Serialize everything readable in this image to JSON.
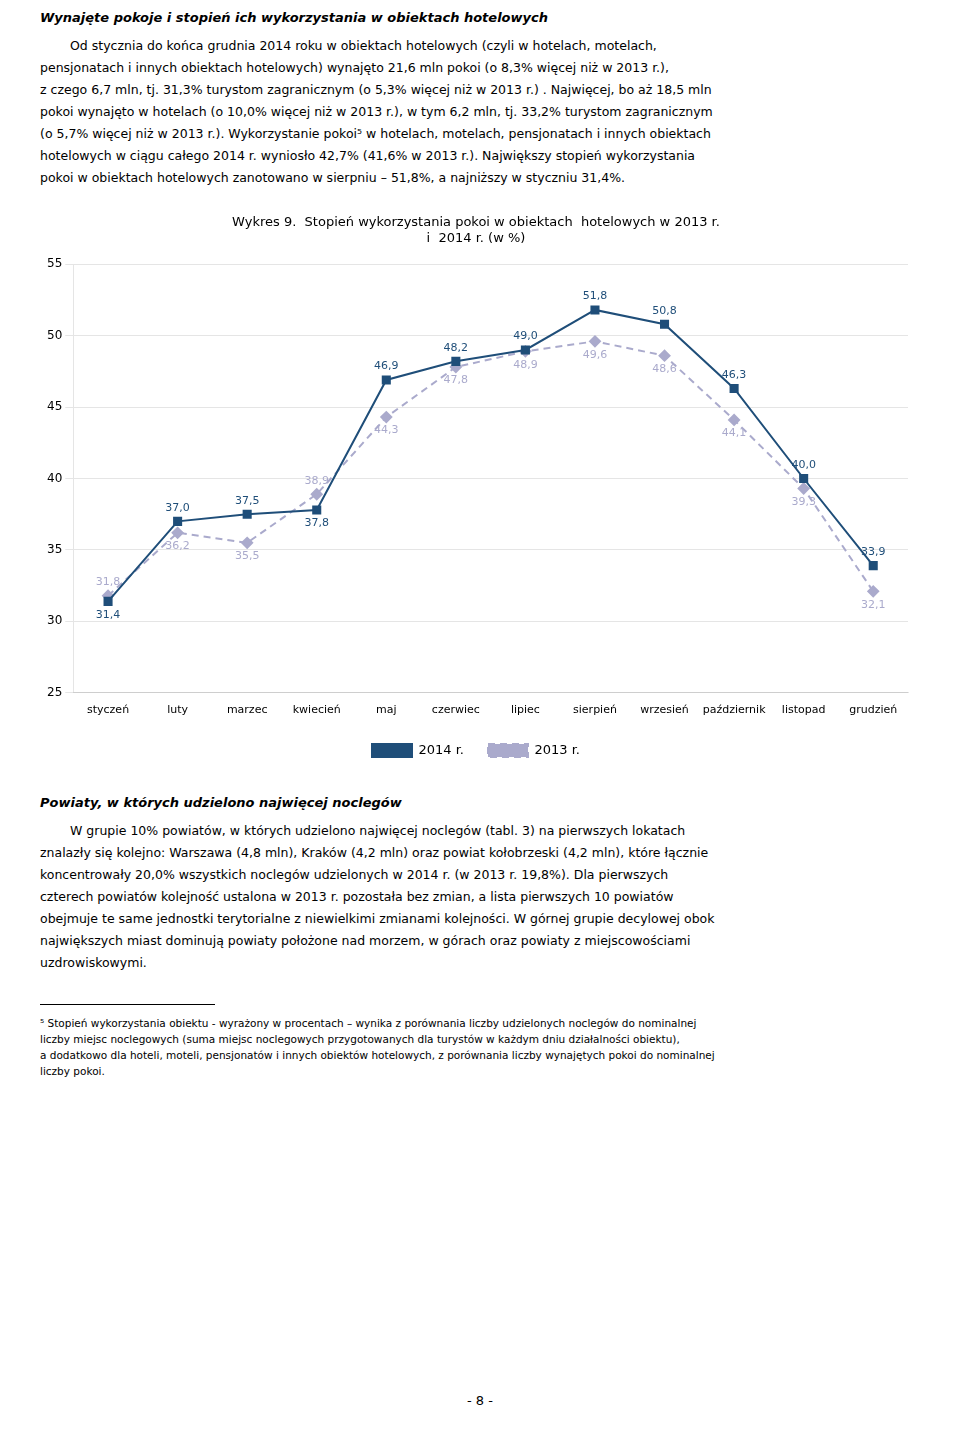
{
  "heading": "Wynajęte pokoje i stopień ich wykorzystania w obiektach hotelowych",
  "para1_lines": [
    "Od stycznia do końca grudnia 2014 roku w obiektach hotelowych (czyli w hotelach, motelach,",
    "pensjonatach i innych obiektach hotelowych) wynajęto 21,6 mln pokoi (o 8,3% więcej niż w 2013 r.),",
    "z czego 6,7 mln, tj. 31,3% turystom zagranicznym (o 5,3% więcej niż w 2013 r.) . Najwięcej, bo aż 18,5 mln",
    "pokoi wynajęto w hotelach (o 10,0% więcej niż w 2013 r.), w tym 6,2 mln, tj. 33,2% turystom zagranicznym",
    "(o 5,7% więcej niż w 2013 r.). Wykorzystanie pokoi⁵ w hotelach, motelach, pensjonatach i innych obiektach",
    "hotelowych w ciągu całego 2014 r. wyniosło 42,7% (41,6% w 2013 r.). Największy stopień wykorzystania",
    "pokoi w obiektach hotelowych zanotowano w sierpniu – 51,8%, a najniższy w styczniu 31,4%."
  ],
  "chart_data": {
    "type": "line",
    "title": [
      "Wykres 9.  Stopień wykorzystania pokoi w obiektach  hotelowych w 2013 r.",
      "i  2014 r. (w %)"
    ],
    "categories": [
      "styczeń",
      "luty",
      "marzec",
      "kwiecień",
      "maj",
      "czerwiec",
      "lipiec",
      "sierpień",
      "wrzesień",
      "październik",
      "listopad",
      "grudzień"
    ],
    "series": [
      {
        "name": "2014 r.",
        "color": "#1F4E79",
        "marker": "square",
        "line_style": "solid",
        "values": [
          31.4,
          37.0,
          37.5,
          37.8,
          46.9,
          48.2,
          49.0,
          51.8,
          50.8,
          46.3,
          40.0,
          33.9
        ],
        "value_labels": [
          "31,4",
          "37,0",
          "37,5",
          "37,8",
          "46,9",
          "48,2",
          "49,0",
          "51,8",
          "50,8",
          "46,3",
          "40,0",
          "33,9"
        ]
      },
      {
        "name": "2013 r.",
        "color": "#AAAACC",
        "marker": "diamond",
        "line_style": "dashed",
        "values": [
          31.8,
          36.2,
          35.5,
          38.9,
          44.3,
          47.8,
          48.9,
          49.6,
          48.6,
          44.1,
          39.3,
          32.1
        ],
        "value_labels": [
          "31,8",
          "36,2",
          "35,5",
          "38,9",
          "44,3",
          "47,8",
          "48,9",
          "49,6",
          "48,6",
          "44,1",
          "39,3",
          "32,1"
        ]
      }
    ],
    "ylim": [
      25,
      55
    ],
    "yticks": [
      25,
      30,
      35,
      40,
      45,
      50,
      55
    ],
    "grid": true,
    "legend": "bottom",
    "data_labels": true
  },
  "heading2": "Powiaty, w których udzielono najwięcej noclegów",
  "para2_lines": [
    "W grupie 10% powiatów, w których udzielono najwięcej noclegów (tabl. 3) na pierwszych lokatach",
    "znalazły się kolejno: Warszawa (4,8 mln), Kraków (4,2 mln) oraz powiat kołobrzeski (4,2 mln), które łącznie",
    "koncentrowały 20,0% wszystkich noclegów udzielonych w 2014 r. (w 2013 r. 19,8%). Dla pierwszych",
    "czterech powiatów kolejność ustalona w 2013 r. pozostała bez zmian, a lista pierwszych 10 powiatów",
    "obejmuje te same jednostki terytorialne z niewielkimi zmianami kolejności. W górnej grupie decylowej obok",
    "największych  miast dominują powiaty położone nad morzem, w górach oraz powiaty z miejscowościami",
    "uzdrowiskowymi."
  ],
  "footnote_lines": [
    "⁵ Stopień wykorzystania obiektu - wyrażony w procentach – wynika z porównania liczby udzielonych noclegów do nominalnej",
    "liczby miejsc noclegowych (suma miejsc noclegowych przygotowanych dla turystów w każdym dniu działalności obiektu),",
    "a dodatkowo dla hoteli, moteli, pensjonatów i innych obiektów hotelowych, z porównania liczby wynajętych pokoi do nominalnej",
    "liczby pokoi."
  ],
  "page_number": "- 8 -"
}
